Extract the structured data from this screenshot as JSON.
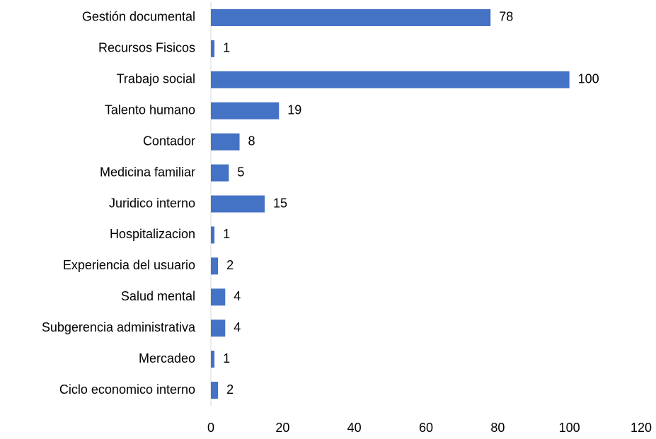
{
  "chart_data": {
    "type": "barh",
    "categories": [
      "Gestión documental",
      "Recursos Fisicos",
      "Trabajo social",
      "Talento humano",
      "Contador",
      "Medicina familiar",
      "Juridico interno",
      "Hospitalizacion",
      "Experiencia del usuario",
      "Salud mental",
      "Subgerencia administrativa",
      "Mercadeo",
      "Ciclo economico interno"
    ],
    "values": [
      78,
      1,
      100,
      19,
      8,
      5,
      15,
      1,
      2,
      4,
      4,
      1,
      2
    ],
    "color": "#4472c4",
    "xlim": [
      0,
      120
    ],
    "xticks": [
      0,
      20,
      40,
      60,
      80,
      100,
      120
    ],
    "grid": false
  }
}
